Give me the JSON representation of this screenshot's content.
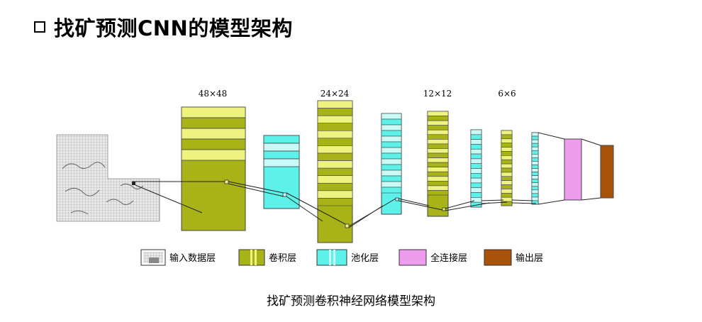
{
  "title": "找矿预测CNN的模型架构",
  "dims": [
    "48×48",
    "24×24",
    "12×12",
    "6×6"
  ],
  "legend": [
    {
      "label": "输入数据层"
    },
    {
      "label": "卷积层"
    },
    {
      "label": "池化层"
    },
    {
      "label": "全连接层"
    },
    {
      "label": "输出层"
    }
  ],
  "caption": "找矿预测卷积神经网络模型架构",
  "colors": {
    "conv": "#a8b317",
    "conv_light": "#eef27e",
    "pool": "#5cf2ea",
    "pool_light": "#c8fbf8",
    "fc": "#ee9cee",
    "output": "#a9520a",
    "border": "#444444"
  }
}
